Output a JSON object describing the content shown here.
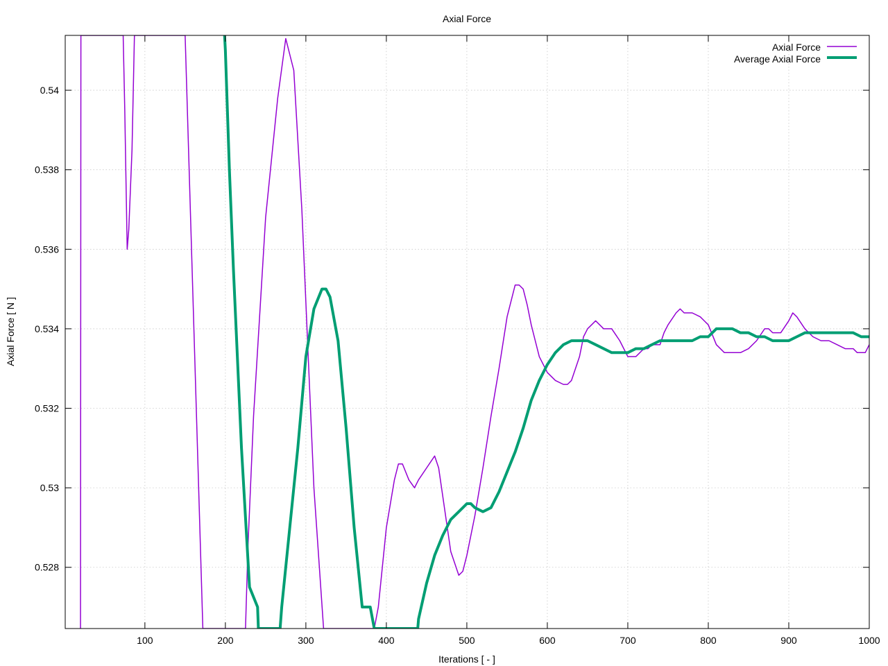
{
  "chart_data": {
    "type": "line",
    "title": "Axial Force",
    "xlabel": "Iterations [ - ]",
    "ylabel": "Axial Force [ N ]",
    "xlim": [
      1,
      1000
    ],
    "ylim": [
      0.52646,
      0.54138
    ],
    "xticks": [
      100,
      200,
      300,
      400,
      500,
      600,
      700,
      800,
      900,
      1000
    ],
    "xtick_labels": [
      "100",
      "200",
      "300",
      "400",
      "500",
      "600",
      "700",
      "800",
      "900",
      "1000"
    ],
    "yticks": [
      0.528,
      0.53,
      0.532,
      0.534,
      0.536,
      0.538,
      0.54
    ],
    "ytick_labels": [
      "0.528",
      "0.53",
      "0.532",
      "0.534",
      "0.536",
      "0.538",
      "0.54"
    ],
    "grid": true,
    "legend_position": "top-right",
    "series": [
      {
        "name": "Axial Force",
        "color": "#9400d3",
        "line_width": 1.5,
        "x": [
          20,
          20.5,
          73,
          75,
          78,
          80,
          84,
          87,
          150,
          172,
          175,
          225,
          228,
          235,
          250,
          265,
          275,
          285,
          295,
          310,
          322,
          325,
          385,
          390,
          400,
          410,
          415,
          420,
          428,
          435,
          440,
          450,
          460,
          465,
          470,
          480,
          490,
          495,
          500,
          510,
          520,
          530,
          540,
          550,
          560,
          565,
          570,
          575,
          580,
          590,
          600,
          610,
          620,
          625,
          630,
          640,
          645,
          650,
          660,
          665,
          670,
          680,
          690,
          700,
          710,
          720,
          725,
          730,
          740,
          745,
          750,
          760,
          765,
          770,
          780,
          790,
          800,
          810,
          820,
          830,
          835,
          840,
          850,
          860,
          870,
          875,
          880,
          890,
          900,
          905,
          910,
          920,
          930,
          940,
          950,
          960,
          970,
          980,
          985,
          990,
          995,
          1000
        ],
        "y": [
          0.52646,
          0.54138,
          0.54138,
          0.5395,
          0.536,
          0.5365,
          0.5385,
          0.54138,
          0.54138,
          0.52646,
          0.52646,
          0.52646,
          0.5285,
          0.5318,
          0.5368,
          0.5398,
          0.5413,
          0.5405,
          0.537,
          0.53,
          0.52646,
          0.52646,
          0.52646,
          0.527,
          0.529,
          0.5302,
          0.5306,
          0.5306,
          0.5302,
          0.53,
          0.5302,
          0.5305,
          0.5308,
          0.5305,
          0.5298,
          0.5284,
          0.5278,
          0.5279,
          0.5283,
          0.5293,
          0.5305,
          0.5318,
          0.533,
          0.5343,
          0.5351,
          0.5351,
          0.535,
          0.5346,
          0.5341,
          0.5333,
          0.5329,
          0.5327,
          0.5326,
          0.5326,
          0.5327,
          0.5333,
          0.5338,
          0.534,
          0.5342,
          0.5341,
          0.534,
          0.534,
          0.5337,
          0.5333,
          0.5333,
          0.5335,
          0.5335,
          0.5336,
          0.5336,
          0.5339,
          0.5341,
          0.5344,
          0.5345,
          0.5344,
          0.5344,
          0.5343,
          0.5341,
          0.5336,
          0.5334,
          0.5334,
          0.5334,
          0.5334,
          0.5335,
          0.5337,
          0.534,
          0.534,
          0.5339,
          0.5339,
          0.5342,
          0.5344,
          0.5343,
          0.534,
          0.5338,
          0.5337,
          0.5337,
          0.5336,
          0.5335,
          0.5335,
          0.5334,
          0.5334,
          0.5334,
          0.5336
        ]
      },
      {
        "name": "Average Axial Force",
        "color": "#009e73",
        "line_width": 4,
        "x": [
          199,
          200,
          205,
          210,
          220,
          230,
          240,
          241,
          268,
          270,
          280,
          290,
          300,
          310,
          320,
          325,
          330,
          340,
          350,
          360,
          370,
          380,
          385,
          386,
          439,
          440,
          450,
          460,
          470,
          480,
          490,
          500,
          505,
          510,
          520,
          530,
          540,
          550,
          560,
          570,
          580,
          590,
          600,
          610,
          620,
          630,
          640,
          650,
          660,
          670,
          680,
          690,
          700,
          710,
          720,
          730,
          740,
          750,
          760,
          770,
          780,
          790,
          800,
          810,
          820,
          830,
          840,
          850,
          860,
          870,
          880,
          890,
          900,
          910,
          920,
          930,
          940,
          950,
          960,
          970,
          980,
          990,
          1000
        ],
        "y": [
          0.54138,
          0.541,
          0.538,
          0.5355,
          0.531,
          0.5275,
          0.527,
          0.52646,
          0.52646,
          0.527,
          0.529,
          0.531,
          0.5333,
          0.5345,
          0.535,
          0.535,
          0.5348,
          0.5337,
          0.5315,
          0.529,
          0.527,
          0.527,
          0.52646,
          0.52646,
          0.52646,
          0.5267,
          0.5276,
          0.5283,
          0.5288,
          0.5292,
          0.5294,
          0.5296,
          0.5296,
          0.5295,
          0.5294,
          0.5295,
          0.5299,
          0.5304,
          0.5309,
          0.5315,
          0.5322,
          0.5327,
          0.5331,
          0.5334,
          0.5336,
          0.5337,
          0.5337,
          0.5337,
          0.5336,
          0.5335,
          0.5334,
          0.5334,
          0.5334,
          0.5335,
          0.5335,
          0.5336,
          0.5337,
          0.5337,
          0.5337,
          0.5337,
          0.5337,
          0.5338,
          0.5338,
          0.534,
          0.534,
          0.534,
          0.5339,
          0.5339,
          0.5338,
          0.5338,
          0.5337,
          0.5337,
          0.5337,
          0.5338,
          0.5339,
          0.5339,
          0.5339,
          0.5339,
          0.5339,
          0.5339,
          0.5339,
          0.5338,
          0.5338
        ]
      }
    ]
  }
}
